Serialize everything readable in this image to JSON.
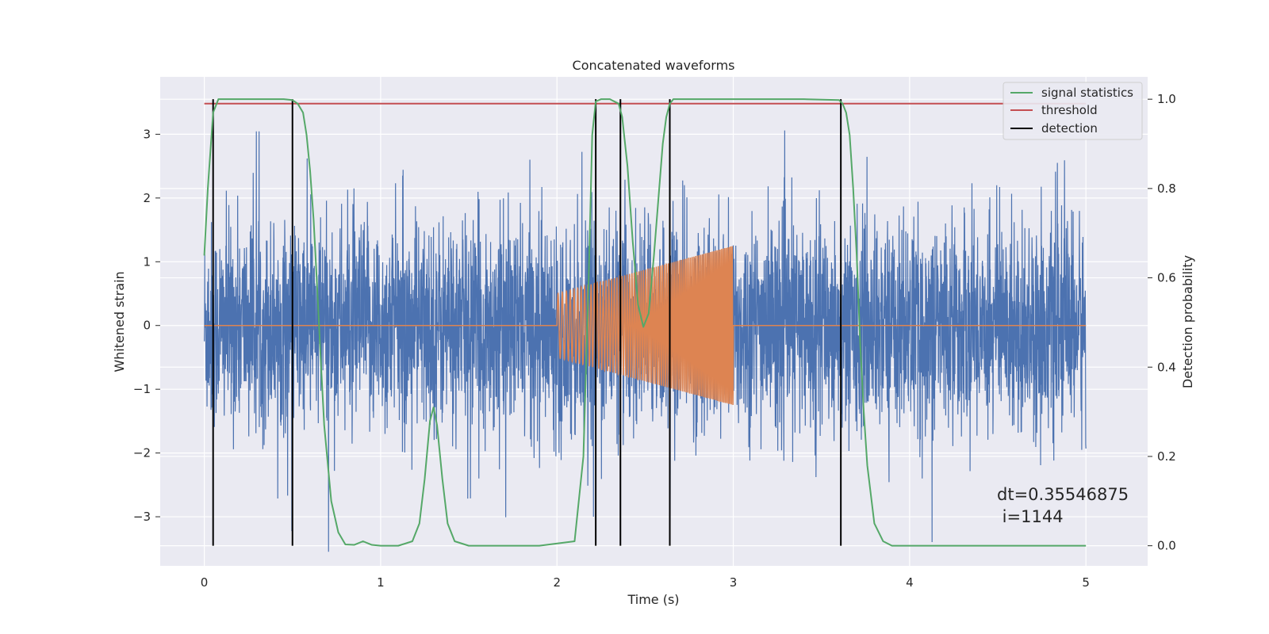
{
  "chart_data": {
    "type": "line",
    "title": "Concatenated waveforms",
    "xlabel": "Time (s)",
    "ylabel": "Whitened strain",
    "y2label": "Detection probability",
    "xlim": [
      -0.25,
      5.35
    ],
    "ylim": [
      -3.77,
      3.9
    ],
    "y2lim": [
      -0.045,
      1.05
    ],
    "x_ticks": [
      0,
      1,
      2,
      3,
      4,
      5
    ],
    "y_ticks": [
      -3,
      -2,
      -1,
      0,
      1,
      2,
      3
    ],
    "y_tick_labels": [
      "−3",
      "−2",
      "−1",
      "0",
      "1",
      "2",
      "3"
    ],
    "y2_ticks": [
      0.0,
      0.2,
      0.4,
      0.6,
      0.8,
      1.0
    ],
    "y2_tick_labels": [
      "0.0",
      "0.2",
      "0.4",
      "0.6",
      "0.8",
      "1.0"
    ],
    "grid": true,
    "legend_position": "top-right",
    "colors": {
      "background": "#eaeaf2",
      "grid": "#ffffff",
      "noise": "#4c72b0",
      "waveform": "#dd8452",
      "signal_statistics": "#55a868",
      "threshold": "#c44e52",
      "detection": "#000000"
    },
    "series": [
      {
        "name": "signal statistics",
        "axis": "right",
        "x": [
          0.0,
          0.02,
          0.05,
          0.08,
          0.12,
          0.2,
          0.3,
          0.45,
          0.5,
          0.53,
          0.56,
          0.58,
          0.6,
          0.62,
          0.64,
          0.66,
          0.68,
          0.72,
          0.76,
          0.8,
          0.85,
          0.9,
          0.95,
          1.0,
          1.1,
          1.18,
          1.22,
          1.25,
          1.28,
          1.3,
          1.32,
          1.35,
          1.38,
          1.42,
          1.5,
          1.7,
          1.9,
          2.1,
          2.15,
          2.18,
          2.2,
          2.22,
          2.25,
          2.3,
          2.35,
          2.37,
          2.4,
          2.43,
          2.46,
          2.49,
          2.52,
          2.55,
          2.58,
          2.6,
          2.62,
          2.64,
          2.66,
          2.7,
          2.8,
          3.0,
          3.2,
          3.4,
          3.6,
          3.62,
          3.64,
          3.66,
          3.68,
          3.7,
          3.72,
          3.74,
          3.76,
          3.8,
          3.85,
          3.9,
          4.2,
          4.6,
          5.0
        ],
        "values": [
          0.65,
          0.8,
          0.97,
          1.0,
          1.0,
          1.0,
          1.0,
          1.0,
          0.998,
          0.99,
          0.97,
          0.92,
          0.84,
          0.73,
          0.58,
          0.42,
          0.27,
          0.1,
          0.03,
          0.003,
          0.002,
          0.01,
          0.002,
          0.0,
          0.0,
          0.01,
          0.05,
          0.15,
          0.28,
          0.31,
          0.27,
          0.15,
          0.05,
          0.01,
          0.0,
          0.0,
          0.0,
          0.01,
          0.2,
          0.6,
          0.92,
          0.995,
          1.0,
          1.0,
          0.99,
          0.96,
          0.85,
          0.68,
          0.54,
          0.49,
          0.52,
          0.65,
          0.8,
          0.9,
          0.96,
          0.99,
          1.0,
          1.0,
          1.0,
          1.0,
          1.0,
          1.0,
          0.998,
          0.99,
          0.97,
          0.92,
          0.8,
          0.65,
          0.45,
          0.3,
          0.18,
          0.05,
          0.01,
          0.0,
          0.0,
          0.0,
          0.0
        ]
      },
      {
        "name": "threshold",
        "axis": "right",
        "x": [
          0.0,
          5.0
        ],
        "values": [
          0.99,
          0.99
        ]
      },
      {
        "name": "detection",
        "axis": "right",
        "type": "vlines",
        "x": [
          0.05,
          0.5,
          2.22,
          2.36,
          2.64,
          3.61
        ],
        "range": [
          0.0,
          1.0
        ]
      },
      {
        "axis": "left",
        "type": "noise",
        "x_range": [
          0.0,
          5.0
        ],
        "typical_amplitude": 0.8,
        "peak_amplitude": 3.55
      },
      {
        "axis": "left",
        "type": "chirp",
        "x_range": [
          2.0,
          3.0
        ],
        "amplitude_start": 0.5,
        "amplitude_end": 1.25,
        "baseline": 0.0
      }
    ],
    "annotations": [
      {
        "text": "dt=0.35546875",
        "x": 4.5,
        "y": -2.6
      },
      {
        "text": " i=1144",
        "x": 4.5,
        "y": -2.95
      }
    ]
  }
}
